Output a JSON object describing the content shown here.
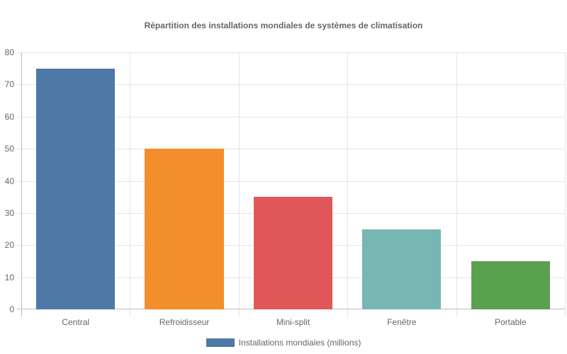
{
  "chart_data": {
    "type": "bar",
    "title": "Répartition des installations mondiales de systèmes de climatisation",
    "categories": [
      "Central",
      "Refroidisseur",
      "Mini-split",
      "Fenêtre",
      "Portable"
    ],
    "series": [
      {
        "name": "Installations mondiales (millions)",
        "values": [
          75,
          50,
          35,
          25,
          15
        ],
        "colors": [
          "#4e79a7",
          "#f28e2b",
          "#e15759",
          "#76b7b2",
          "#59a14f"
        ]
      }
    ],
    "xlabel": "",
    "ylabel": "",
    "ylim": [
      0,
      80
    ],
    "yticks": [
      0,
      10,
      20,
      30,
      40,
      50,
      60,
      70,
      80
    ],
    "grid": true,
    "legend_position": "bottom"
  },
  "legend": {
    "label": "Installations mondiales (millions)",
    "color": "#4e79a7"
  }
}
